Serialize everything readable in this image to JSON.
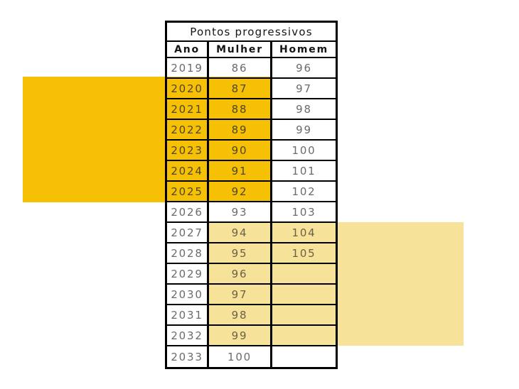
{
  "page": {
    "background": "#ffffff"
  },
  "colors": {
    "strong_yellow": "#F6C004",
    "soft_yellow": "#F6E399",
    "border_black": "#000000",
    "heading_text": "#141414",
    "value_gray": "#6b6b6b"
  },
  "chart_data": {
    "type": "table",
    "title": "Pontos progressivos",
    "columns": [
      "Ano",
      "Mulher",
      "Homem"
    ],
    "rows": [
      {
        "ano": "2019",
        "mulher": "86",
        "homem": "96",
        "highlight": "none"
      },
      {
        "ano": "2020",
        "mulher": "87",
        "homem": "97",
        "highlight": "strong"
      },
      {
        "ano": "2021",
        "mulher": "88",
        "homem": "98",
        "highlight": "strong"
      },
      {
        "ano": "2022",
        "mulher": "89",
        "homem": "99",
        "highlight": "strong"
      },
      {
        "ano": "2023",
        "mulher": "90",
        "homem": "100",
        "highlight": "strong"
      },
      {
        "ano": "2024",
        "mulher": "91",
        "homem": "101",
        "highlight": "strong"
      },
      {
        "ano": "2025",
        "mulher": "92",
        "homem": "102",
        "highlight": "strong"
      },
      {
        "ano": "2026",
        "mulher": "93",
        "homem": "103",
        "highlight": "none"
      },
      {
        "ano": "2027",
        "mulher": "94",
        "homem": "104",
        "highlight": "soft"
      },
      {
        "ano": "2028",
        "mulher": "95",
        "homem": "105",
        "highlight": "soft"
      },
      {
        "ano": "2029",
        "mulher": "96",
        "homem": "",
        "highlight": "soft"
      },
      {
        "ano": "2030",
        "mulher": "97",
        "homem": "",
        "highlight": "soft"
      },
      {
        "ano": "2031",
        "mulher": "98",
        "homem": "",
        "highlight": "soft"
      },
      {
        "ano": "2032",
        "mulher": "99",
        "homem": "",
        "highlight": "soft"
      },
      {
        "ano": "2033",
        "mulher": "100",
        "homem": "",
        "highlight": "none"
      }
    ],
    "highlight_layout": {
      "strong_columns": [
        "ano",
        "mulher"
      ],
      "soft_columns": [
        "mulher",
        "homem"
      ]
    }
  }
}
